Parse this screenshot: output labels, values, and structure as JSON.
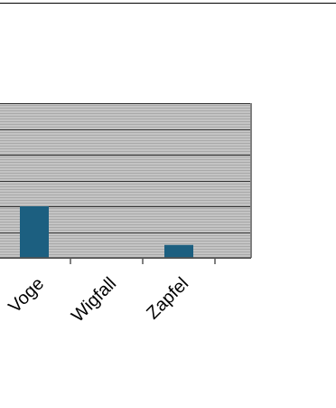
{
  "chart_data": {
    "type": "bar",
    "title": "",
    "xlabel": "",
    "ylabel": "",
    "categories": [
      "Voge",
      "Wigfall",
      "Zapfel"
    ],
    "values": [
      2,
      0,
      0.5
    ],
    "ylim": [
      0,
      6
    ],
    "grid": true,
    "legend": "none",
    "colors": {
      "bar": "#1c5f80",
      "plot_background": "#c4c4c4",
      "plot_stripe": "#a9a9a9",
      "gridline": "#333333",
      "axis": "#555555",
      "frame": "#808080",
      "top_rule": "#000000"
    }
  }
}
